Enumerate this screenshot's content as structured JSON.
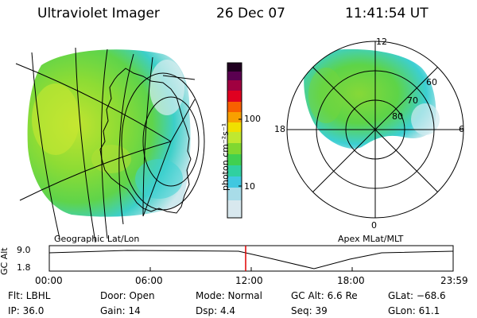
{
  "header": {
    "title": "Ultraviolet Imager",
    "date": "26 Dec 07",
    "time": "11:41:54 UT"
  },
  "colorbar": {
    "unit_label": "photon cm⁻²s⁻¹",
    "ticks": [
      "100",
      "10"
    ],
    "colors": [
      "#d8e8ee",
      "#a8dce8",
      "#40c8e0",
      "#30d0a0",
      "#40d050",
      "#80d830",
      "#c0e830",
      "#f0e000",
      "#f8a000",
      "#f86000",
      "#e00020",
      "#a00040",
      "#5a0050",
      "#200020"
    ]
  },
  "geo_map": {
    "caption": "Geographic Lat/Lon",
    "fill_colors": {
      "green": "#7cd83a",
      "yellow": "#c8e832",
      "cyan": "#3cd6d8",
      "light": "#cfe9ee"
    }
  },
  "polar_map": {
    "caption": "Apex MLat/MLT",
    "hour_labels": [
      "12",
      "6",
      "0",
      "18"
    ],
    "lat_labels": [
      "60",
      "70",
      "80"
    ]
  },
  "timeline": {
    "axis_label": "GC Alt",
    "y_ticks": [
      "9.0",
      "1.8"
    ],
    "x_ticks": [
      "00:00",
      "06:00",
      "12:00",
      "18:00",
      "23:59"
    ],
    "marker_color": "#e00000"
  },
  "info": {
    "row1": {
      "filter": "Flt: LBHL",
      "door": "Door: Open",
      "mode": "Mode: Normal",
      "gc_alt": "GC Alt: 6.6 Re",
      "glat": "GLat: −68.6"
    },
    "row2": {
      "ip": "IP: 36.0",
      "gain": "Gain: 14",
      "dsp": "Dsp:    4.4",
      "seq": "Seq: 39",
      "glon": "GLon:  61.1"
    }
  }
}
